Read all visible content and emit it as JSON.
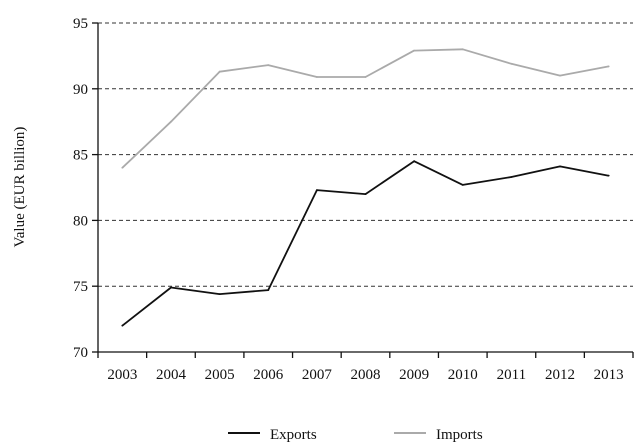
{
  "chart_data": {
    "type": "line",
    "title": "",
    "xlabel": "",
    "ylabel": "Value (EUR billion)",
    "ylim": [
      70,
      95
    ],
    "yticks": [
      70,
      75,
      80,
      85,
      90,
      95
    ],
    "grid": "horizontal-dashed",
    "legend_position": "bottom",
    "categories": [
      "2003",
      "2004",
      "2005",
      "2006",
      "2007",
      "2008",
      "2009",
      "2010",
      "2011",
      "2012",
      "2013"
    ],
    "series": [
      {
        "name": "Exports",
        "color": "#111111",
        "values": [
          72.0,
          74.9,
          74.4,
          74.7,
          82.3,
          82.0,
          84.5,
          82.7,
          83.3,
          84.1,
          83.4
        ]
      },
      {
        "name": "Imports",
        "color": "#aaaaaa",
        "values": [
          84.0,
          87.5,
          91.3,
          91.8,
          90.9,
          90.9,
          92.9,
          93.0,
          91.9,
          91.0,
          91.7
        ]
      }
    ]
  }
}
